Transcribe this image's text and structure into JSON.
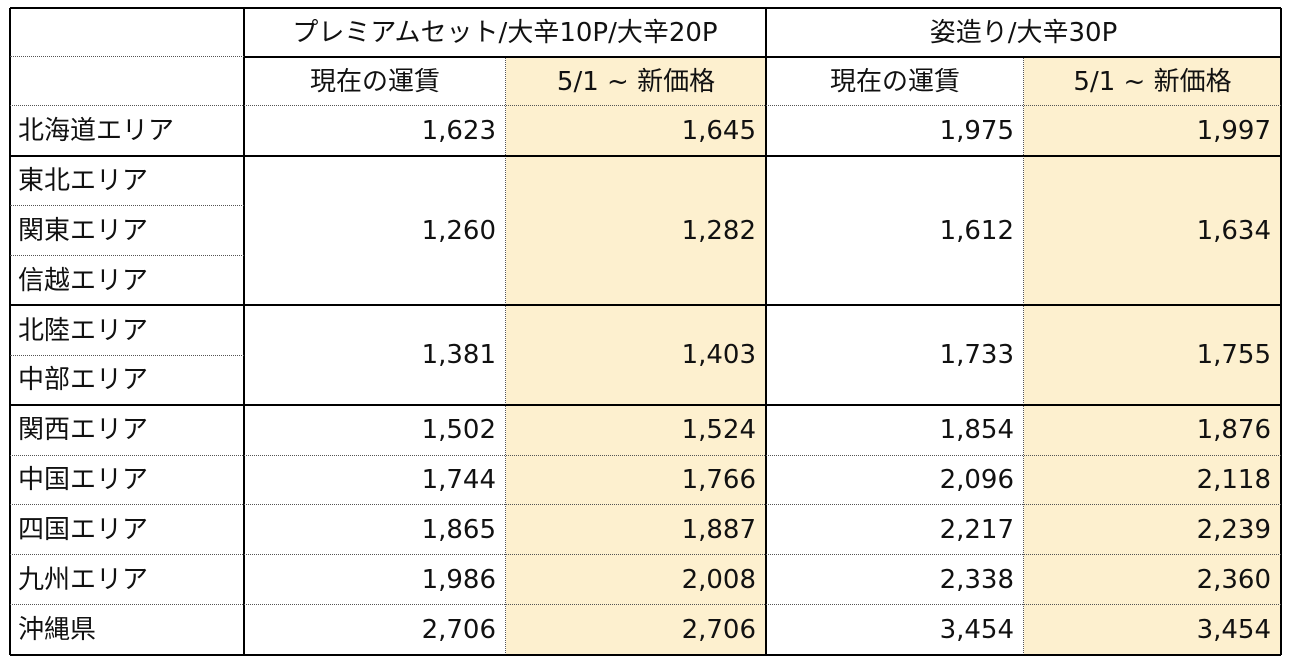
{
  "table": {
    "groups": [
      {
        "label": "プレミアムセット/大辛10P/大辛20P"
      },
      {
        "label": "姿造り/大辛30P"
      }
    ],
    "subheaders": [
      "現在の運賃",
      "5/1 ~ 新価格",
      "現在の運賃",
      "5/1 ~ 新価格"
    ],
    "regions": [
      "北海道エリア",
      "東北エリア",
      "関東エリア",
      "信越エリア",
      "北陸エリア",
      "中部エリア",
      "関西エリア",
      "中国エリア",
      "四国エリア",
      "九州エリア",
      "沖縄県"
    ],
    "price_groups": [
      {
        "rows": 1,
        "values": [
          "1,623",
          "1,645",
          "1,975",
          "1,997"
        ]
      },
      {
        "rows": 3,
        "values": [
          "1,260",
          "1,282",
          "1,612",
          "1,634"
        ]
      },
      {
        "rows": 2,
        "values": [
          "1,381",
          "1,403",
          "1,733",
          "1,755"
        ]
      },
      {
        "rows": 1,
        "values": [
          "1,502",
          "1,524",
          "1,854",
          "1,876"
        ]
      },
      {
        "rows": 1,
        "values": [
          "1,744",
          "1,766",
          "2,096",
          "2,118"
        ]
      },
      {
        "rows": 1,
        "values": [
          "1,865",
          "1,887",
          "2,217",
          "2,239"
        ]
      },
      {
        "rows": 1,
        "values": [
          "1,986",
          "2,008",
          "2,338",
          "2,360"
        ]
      },
      {
        "rows": 1,
        "values": [
          "2,706",
          "2,706",
          "3,454",
          "3,454"
        ]
      }
    ]
  },
  "colors": {
    "new_price_bg": "#fdf0cf",
    "border": "#000000",
    "dotted": "#555555"
  }
}
